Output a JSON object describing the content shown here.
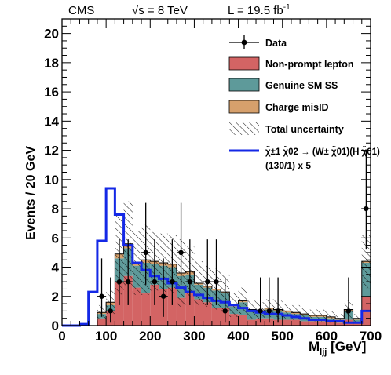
{
  "header": {
    "experiment": "CMS",
    "energy": "√s = 8 TeV",
    "lumi": "L = 19.5 fb",
    "lumi_sup": "-1"
  },
  "chart_data": {
    "type": "bar",
    "xlabel": "M",
    "xlabel_sub": "ljj",
    "xlabel_unit": " [GeV]",
    "ylabel": "Events / 20 GeV",
    "xlim": [
      0,
      700
    ],
    "ylim": [
      0,
      21
    ],
    "x_ticks": [
      0,
      100,
      200,
      300,
      400,
      500,
      600,
      700
    ],
    "y_ticks": [
      0,
      2,
      4,
      6,
      8,
      10,
      12,
      14,
      16,
      18,
      20
    ],
    "bin_edges": [
      0,
      20,
      40,
      60,
      80,
      100,
      120,
      140,
      160,
      180,
      200,
      220,
      240,
      260,
      280,
      300,
      320,
      340,
      360,
      380,
      400,
      420,
      440,
      460,
      480,
      500,
      520,
      540,
      560,
      580,
      600,
      620,
      640,
      660,
      680,
      700
    ],
    "series": [
      {
        "name": "Non-prompt lepton",
        "color": "#d36464",
        "values": [
          0,
          0,
          0,
          0,
          0.5,
          1.0,
          3.0,
          3.4,
          2.6,
          2.2,
          2.8,
          2.5,
          2.6,
          1.9,
          2.2,
          1.8,
          1.6,
          1.2,
          1.2,
          0.8,
          0.7,
          0.4,
          0.5,
          0.5,
          0.4,
          0.4,
          0.4,
          0.3,
          0.3,
          0.3,
          0.3,
          0.2,
          0.4,
          0.2,
          2.0
        ]
      },
      {
        "name": "Genuine SM SS",
        "color": "#5e9a9a",
        "values": [
          0,
          0,
          0,
          0,
          0.3,
          0.4,
          1.6,
          1.9,
          1.5,
          2.1,
          1.4,
          1.6,
          1.4,
          1.5,
          1.3,
          1.0,
          1.0,
          1.2,
          1.0,
          0.5,
          0.9,
          0.6,
          0.4,
          0.6,
          0.6,
          0.5,
          0.4,
          0.4,
          0.3,
          0.3,
          0.2,
          0.2,
          0.6,
          0.2,
          2.3
        ]
      },
      {
        "name": "Charge misID",
        "color": "#d6a06c",
        "values": [
          0,
          0,
          0,
          0,
          0.1,
          0.2,
          0.3,
          0.3,
          0.2,
          0.2,
          0.2,
          0.2,
          0.2,
          0.2,
          0.2,
          0.1,
          0.1,
          0.1,
          0.1,
          0.1,
          0.1,
          0.1,
          0.1,
          0.1,
          0.1,
          0.1,
          0.1,
          0.1,
          0.1,
          0.1,
          0.1,
          0.1,
          0.1,
          0.1,
          0.1
        ]
      }
    ],
    "uncertainty": {
      "name": "Total uncertainty",
      "values": [
        0,
        0,
        0,
        0,
        0.5,
        0.8,
        2.8,
        2.9,
        2.2,
        2.4,
        2.0,
        2.0,
        2.0,
        2.3,
        1.7,
        1.5,
        1.4,
        1.4,
        1.2,
        0.8,
        0.9,
        0.6,
        0.6,
        0.6,
        0.6,
        0.5,
        0.5,
        0.4,
        0.4,
        0.4,
        0.4,
        0.3,
        0.6,
        0.3,
        1.8
      ]
    },
    "signal": {
      "name": "χ̃±1 χ̃02 → (W± χ̃01)(H χ̃01)",
      "name_line2": "(130/1) x 5",
      "color": "#1428e6",
      "values": [
        0,
        0,
        0.1,
        2.3,
        5.8,
        9.4,
        7.6,
        5.5,
        4.3,
        3.8,
        3.4,
        3.2,
        2.9,
        2.6,
        2.3,
        2.1,
        1.9,
        1.7,
        1.6,
        1.4,
        1.2,
        1.0,
        0.9,
        0.8,
        0.8,
        0.7,
        0.6,
        0.5,
        0.4,
        0.4,
        0.3,
        0.3,
        0.2,
        0.2,
        1.0
      ]
    },
    "data": {
      "name": "Data",
      "points": [
        {
          "x": 90,
          "y": 2,
          "err": [
            1.4,
            2.6
          ]
        },
        {
          "x": 110,
          "y": 1,
          "err": [
            0.8,
            2.3
          ]
        },
        {
          "x": 130,
          "y": 3,
          "err": [
            1.6,
            2.9
          ]
        },
        {
          "x": 150,
          "y": 3,
          "err": [
            1.6,
            2.9
          ]
        },
        {
          "x": 190,
          "y": 5,
          "err": [
            2.2,
            3.4
          ]
        },
        {
          "x": 210,
          "y": 3,
          "err": [
            1.6,
            2.9
          ]
        },
        {
          "x": 230,
          "y": 2,
          "err": [
            1.4,
            2.6
          ]
        },
        {
          "x": 250,
          "y": 3,
          "err": [
            1.6,
            2.9
          ]
        },
        {
          "x": 270,
          "y": 5,
          "err": [
            2.2,
            3.4
          ]
        },
        {
          "x": 290,
          "y": 3,
          "err": [
            1.6,
            2.9
          ]
        },
        {
          "x": 330,
          "y": 3,
          "err": [
            1.6,
            2.9
          ]
        },
        {
          "x": 350,
          "y": 3,
          "err": [
            1.6,
            2.9
          ]
        },
        {
          "x": 370,
          "y": 1,
          "err": [
            0.8,
            2.3
          ]
        },
        {
          "x": 450,
          "y": 1,
          "err": [
            0.8,
            2.3
          ]
        },
        {
          "x": 470,
          "y": 1,
          "err": [
            0.8,
            2.3
          ]
        },
        {
          "x": 490,
          "y": 1,
          "err": [
            0.8,
            2.3
          ]
        },
        {
          "x": 650,
          "y": 1,
          "err": [
            0.8,
            2.3
          ]
        },
        {
          "x": 690,
          "y": 8,
          "err": [
            2.8,
            4.0
          ]
        }
      ]
    },
    "legend": [
      "Data",
      "Genuine SM SS",
      "Non-prompt lepton",
      "Charge misID",
      "Total uncertainty",
      "signal"
    ]
  }
}
